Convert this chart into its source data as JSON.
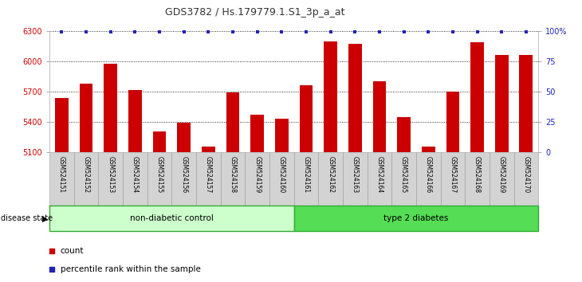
{
  "title": "GDS3782 / Hs.179779.1.S1_3p_a_at",
  "samples": [
    "GSM524151",
    "GSM524152",
    "GSM524153",
    "GSM524154",
    "GSM524155",
    "GSM524156",
    "GSM524157",
    "GSM524158",
    "GSM524159",
    "GSM524160",
    "GSM524161",
    "GSM524162",
    "GSM524163",
    "GSM524164",
    "GSM524165",
    "GSM524166",
    "GSM524167",
    "GSM524168",
    "GSM524169",
    "GSM524170"
  ],
  "counts": [
    5640,
    5780,
    5980,
    5720,
    5310,
    5390,
    5155,
    5690,
    5470,
    5430,
    5760,
    6200,
    6170,
    5800,
    5450,
    5155,
    5700,
    6190,
    6060,
    6060
  ],
  "percentile_value": 99,
  "ylim_left": [
    5100,
    6300
  ],
  "yticks_left": [
    5100,
    5400,
    5700,
    6000,
    6300
  ],
  "ylim_right": [
    0,
    100
  ],
  "yticks_right": [
    0,
    25,
    50,
    75,
    100
  ],
  "bar_color": "#cc0000",
  "percentile_color": "#2222bb",
  "non_diabetic_count": 10,
  "type2_count": 10,
  "non_diabetic_label": "non-diabetic control",
  "type2_label": "type 2 diabetes",
  "disease_state_label": "disease state",
  "legend_count_label": "count",
  "legend_percentile_label": "percentile rank within the sample",
  "non_diabetic_color": "#ccffcc",
  "type2_color": "#55dd55",
  "tick_label_bg": "#d3d3d3",
  "left_axis_color": "#cc0000",
  "right_axis_color": "#2222bb",
  "title_color": "#333333"
}
